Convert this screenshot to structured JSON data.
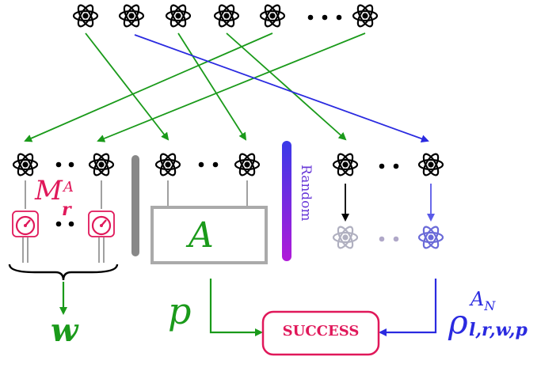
{
  "labels": {
    "measurement": "M",
    "measurement_sup": "A",
    "measurement_sub": "r",
    "box_label": "A",
    "random": "Random",
    "w": "w",
    "p": "p",
    "success": "SUCCESS",
    "rho": "ρ",
    "rho_sup": "A",
    "rho_sup_sub": "N",
    "rho_sub": "l,r,w,p"
  },
  "colors": {
    "green": "#1a9a1a",
    "blue": "#2a2ae0",
    "red": "#e0185a",
    "gray": "#888888",
    "black": "#000000",
    "faded": "#b0a8c8"
  },
  "icons": {
    "atom": "atom-icon",
    "meter": "meter-icon"
  }
}
